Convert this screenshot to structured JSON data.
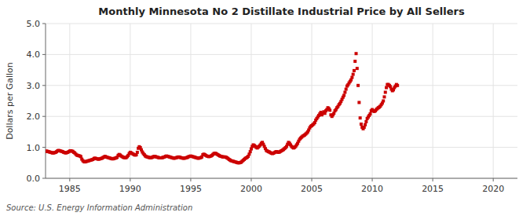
{
  "chart_data": {
    "type": "scatter",
    "title": "Monthly Minnesota No 2 Distillate Industrial Price by All Sellers",
    "y_label": "Dollars per Gallon",
    "source": "Source: U.S. Energy Information Administration",
    "xlim": [
      1983,
      2022
    ],
    "ylim": [
      0.0,
      5.0
    ],
    "xticks": [
      1985,
      1990,
      1995,
      2000,
      2005,
      2010,
      2015,
      2020
    ],
    "yticks": [
      {
        "value": 0.0,
        "label": "0.0"
      },
      {
        "value": 1.0,
        "label": "1.0"
      },
      {
        "value": 2.0,
        "label": "2.0"
      },
      {
        "value": 3.0,
        "label": "3.0"
      },
      {
        "value": 4.0,
        "label": "4.0"
      },
      {
        "value": 5.0,
        "label": "5.0"
      }
    ],
    "grid": true,
    "color": "#cc0000",
    "marker": "square",
    "x": [
      1983.0,
      1983.083,
      1983.167,
      1983.25,
      1983.333,
      1983.417,
      1983.5,
      1983.583,
      1983.667,
      1983.75,
      1983.833,
      1983.917,
      1984.0,
      1984.083,
      1984.167,
      1984.25,
      1984.333,
      1984.417,
      1984.5,
      1984.583,
      1984.667,
      1984.75,
      1984.833,
      1984.917,
      1985.0,
      1985.083,
      1985.167,
      1985.25,
      1985.333,
      1985.417,
      1985.5,
      1985.583,
      1985.667,
      1985.75,
      1985.833,
      1985.917,
      1986.0,
      1986.083,
      1986.167,
      1986.25,
      1986.333,
      1986.417,
      1986.5,
      1986.583,
      1986.667,
      1986.75,
      1986.833,
      1986.917,
      1987.0,
      1987.083,
      1987.167,
      1987.25,
      1987.333,
      1987.417,
      1987.5,
      1987.583,
      1987.667,
      1987.75,
      1987.833,
      1987.917,
      1988.0,
      1988.083,
      1988.167,
      1988.25,
      1988.333,
      1988.417,
      1988.5,
      1988.583,
      1988.667,
      1988.75,
      1988.833,
      1988.917,
      1989.0,
      1989.083,
      1989.167,
      1989.25,
      1989.333,
      1989.417,
      1989.5,
      1989.583,
      1989.667,
      1989.75,
      1989.833,
      1989.917,
      1990.0,
      1990.083,
      1990.167,
      1990.25,
      1990.333,
      1990.417,
      1990.5,
      1990.583,
      1990.667,
      1990.75,
      1990.833,
      1990.917,
      1991.0,
      1991.083,
      1991.167,
      1991.25,
      1991.333,
      1991.417,
      1991.5,
      1991.583,
      1991.667,
      1991.75,
      1991.833,
      1991.917,
      1992.0,
      1992.083,
      1992.167,
      1992.25,
      1992.333,
      1992.417,
      1992.5,
      1992.583,
      1992.667,
      1992.75,
      1992.833,
      1992.917,
      1993.0,
      1993.083,
      1993.167,
      1993.25,
      1993.333,
      1993.417,
      1993.5,
      1993.583,
      1993.667,
      1993.75,
      1993.833,
      1993.917,
      1994.0,
      1994.083,
      1994.167,
      1994.25,
      1994.333,
      1994.417,
      1994.5,
      1994.583,
      1994.667,
      1994.75,
      1994.833,
      1994.917,
      1995.0,
      1995.083,
      1995.167,
      1995.25,
      1995.333,
      1995.417,
      1995.5,
      1995.583,
      1995.667,
      1995.75,
      1995.833,
      1995.917,
      1996.0,
      1996.083,
      1996.167,
      1996.25,
      1996.333,
      1996.417,
      1996.5,
      1996.583,
      1996.667,
      1996.75,
      1996.833,
      1996.917,
      1997.0,
      1997.083,
      1997.167,
      1997.25,
      1997.333,
      1997.417,
      1997.5,
      1997.583,
      1997.667,
      1997.75,
      1997.833,
      1997.917,
      1998.0,
      1998.083,
      1998.167,
      1998.25,
      1998.333,
      1998.417,
      1998.5,
      1998.583,
      1998.667,
      1998.75,
      1998.833,
      1998.917,
      1999.0,
      1999.083,
      1999.167,
      1999.25,
      1999.333,
      1999.417,
      1999.5,
      1999.583,
      1999.667,
      1999.75,
      1999.833,
      1999.917,
      2000.0,
      2000.083,
      2000.167,
      2000.25,
      2000.333,
      2000.417,
      2000.5,
      2000.583,
      2000.667,
      2000.75,
      2000.833,
      2000.917,
      2001.0,
      2001.083,
      2001.167,
      2001.25,
      2001.333,
      2001.417,
      2001.5,
      2001.583,
      2001.667,
      2001.75,
      2001.833,
      2001.917,
      2002.0,
      2002.083,
      2002.167,
      2002.25,
      2002.333,
      2002.417,
      2002.5,
      2002.583,
      2002.667,
      2002.75,
      2002.833,
      2002.917,
      2003.0,
      2003.083,
      2003.167,
      2003.25,
      2003.333,
      2003.417,
      2003.5,
      2003.583,
      2003.667,
      2003.75,
      2003.833,
      2003.917,
      2004.0,
      2004.083,
      2004.167,
      2004.25,
      2004.333,
      2004.417,
      2004.5,
      2004.583,
      2004.667,
      2004.75,
      2004.833,
      2004.917,
      2005.0,
      2005.083,
      2005.167,
      2005.25,
      2005.333,
      2005.417,
      2005.5,
      2005.583,
      2005.667,
      2005.75,
      2005.833,
      2005.917,
      2006.0,
      2006.083,
      2006.167,
      2006.25,
      2006.333,
      2006.417,
      2006.5,
      2006.583,
      2006.667,
      2006.75,
      2006.833,
      2006.917,
      2007.0,
      2007.083,
      2007.167,
      2007.25,
      2007.333,
      2007.417,
      2007.5,
      2007.583,
      2007.667,
      2007.75,
      2007.833,
      2007.917,
      2008.0,
      2008.083,
      2008.167,
      2008.25,
      2008.333,
      2008.417,
      2008.5,
      2008.583,
      2008.667,
      2008.75,
      2008.833,
      2008.917,
      2009.0,
      2009.083,
      2009.167,
      2009.25,
      2009.333,
      2009.417,
      2009.5,
      2009.583,
      2009.667,
      2009.75,
      2009.833,
      2009.917,
      2010.0,
      2010.083,
      2010.167,
      2010.25,
      2010.333,
      2010.417,
      2010.5,
      2010.583,
      2010.667,
      2010.75,
      2010.833,
      2010.917,
      2011.0,
      2011.083,
      2011.167,
      2011.25,
      2011.333,
      2011.417,
      2011.5,
      2011.583,
      2011.667,
      2011.75,
      2011.833,
      2011.917,
      2012.0,
      2012.083
    ],
    "values": [
      0.87,
      0.88,
      0.87,
      0.86,
      0.85,
      0.84,
      0.83,
      0.82,
      0.82,
      0.83,
      0.84,
      0.86,
      0.89,
      0.9,
      0.89,
      0.88,
      0.87,
      0.86,
      0.84,
      0.83,
      0.82,
      0.83,
      0.84,
      0.86,
      0.88,
      0.89,
      0.88,
      0.87,
      0.84,
      0.82,
      0.78,
      0.75,
      0.74,
      0.73,
      0.72,
      0.7,
      0.62,
      0.57,
      0.54,
      0.53,
      0.54,
      0.55,
      0.56,
      0.57,
      0.58,
      0.59,
      0.6,
      0.61,
      0.64,
      0.65,
      0.64,
      0.63,
      0.62,
      0.62,
      0.63,
      0.64,
      0.65,
      0.67,
      0.69,
      0.71,
      0.69,
      0.68,
      0.67,
      0.66,
      0.65,
      0.64,
      0.63,
      0.63,
      0.64,
      0.65,
      0.66,
      0.68,
      0.74,
      0.77,
      0.75,
      0.72,
      0.7,
      0.68,
      0.67,
      0.66,
      0.67,
      0.7,
      0.74,
      0.8,
      0.84,
      0.82,
      0.8,
      0.78,
      0.76,
      0.75,
      0.76,
      0.84,
      0.97,
      1.02,
      0.99,
      0.92,
      0.85,
      0.8,
      0.76,
      0.72,
      0.7,
      0.69,
      0.68,
      0.67,
      0.66,
      0.67,
      0.68,
      0.7,
      0.71,
      0.7,
      0.69,
      0.68,
      0.67,
      0.66,
      0.66,
      0.66,
      0.67,
      0.68,
      0.69,
      0.71,
      0.72,
      0.71,
      0.7,
      0.69,
      0.68,
      0.67,
      0.66,
      0.65,
      0.65,
      0.66,
      0.67,
      0.68,
      0.69,
      0.68,
      0.67,
      0.66,
      0.65,
      0.65,
      0.65,
      0.66,
      0.67,
      0.68,
      0.7,
      0.71,
      0.72,
      0.71,
      0.7,
      0.69,
      0.68,
      0.67,
      0.66,
      0.65,
      0.65,
      0.66,
      0.67,
      0.69,
      0.76,
      0.78,
      0.76,
      0.74,
      0.72,
      0.71,
      0.7,
      0.71,
      0.72,
      0.74,
      0.77,
      0.8,
      0.81,
      0.8,
      0.78,
      0.76,
      0.74,
      0.72,
      0.71,
      0.7,
      0.69,
      0.69,
      0.69,
      0.68,
      0.66,
      0.64,
      0.61,
      0.59,
      0.57,
      0.56,
      0.55,
      0.54,
      0.53,
      0.52,
      0.51,
      0.5,
      0.5,
      0.51,
      0.52,
      0.55,
      0.58,
      0.61,
      0.64,
      0.66,
      0.68,
      0.71,
      0.78,
      0.86,
      0.95,
      1.03,
      1.08,
      1.06,
      1.03,
      1.0,
      0.98,
      1.01,
      1.04,
      1.08,
      1.13,
      1.16,
      1.1,
      1.03,
      0.96,
      0.9,
      0.88,
      0.86,
      0.85,
      0.83,
      0.81,
      0.8,
      0.81,
      0.83,
      0.85,
      0.86,
      0.85,
      0.84,
      0.85,
      0.87,
      0.89,
      0.91,
      0.93,
      0.96,
      0.99,
      1.03,
      1.1,
      1.16,
      1.13,
      1.08,
      1.03,
      1.0,
      0.98,
      1.0,
      1.03,
      1.08,
      1.13,
      1.2,
      1.26,
      1.3,
      1.33,
      1.36,
      1.38,
      1.4,
      1.43,
      1.46,
      1.5,
      1.56,
      1.63,
      1.68,
      1.7,
      1.73,
      1.76,
      1.8,
      1.88,
      1.93,
      1.98,
      2.03,
      2.08,
      2.13,
      2.05,
      2.1,
      2.15,
      2.1,
      2.18,
      2.22,
      2.28,
      2.25,
      2.2,
      2.05,
      2.0,
      2.05,
      2.1,
      2.18,
      2.22,
      2.28,
      2.32,
      2.38,
      2.42,
      2.48,
      2.55,
      2.62,
      2.68,
      2.78,
      2.88,
      2.98,
      3.02,
      3.08,
      3.13,
      3.18,
      3.26,
      3.36,
      3.48,
      3.78,
      4.03,
      3.55,
      3.0,
      2.45,
      1.95,
      1.75,
      1.65,
      1.6,
      1.65,
      1.73,
      1.83,
      1.93,
      1.98,
      2.03,
      2.08,
      2.18,
      2.22,
      2.18,
      2.16,
      2.18,
      2.22,
      2.25,
      2.28,
      2.3,
      2.33,
      2.38,
      2.43,
      2.5,
      2.63,
      2.78,
      2.93,
      3.03,
      3.03,
      3.0,
      2.96,
      2.88,
      2.83,
      2.86,
      2.93,
      2.98,
      3.03,
      3.0
    ]
  }
}
